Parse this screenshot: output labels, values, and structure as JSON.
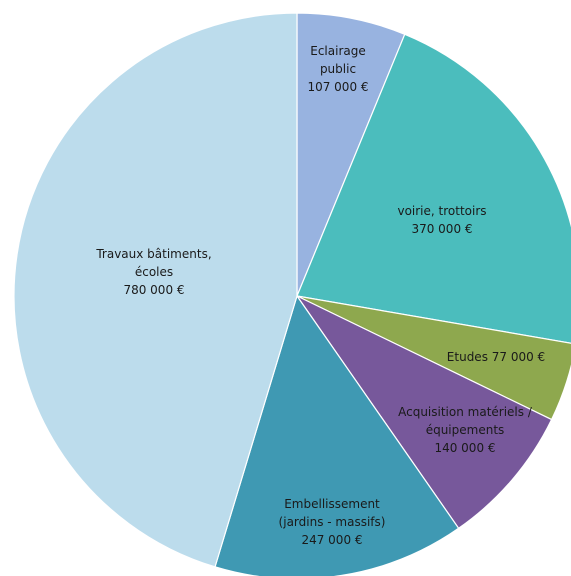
{
  "chart_data": {
    "type": "pie",
    "title": "",
    "slices": [
      {
        "label_lines": [
          "Eclairage",
          "public",
          "107 000 €"
        ],
        "value": 107000,
        "color": "#98b3e0"
      },
      {
        "label_lines": [
          "voirie, trottoirs",
          "370 000 €"
        ],
        "value": 370000,
        "color": "#4bbdbd"
      },
      {
        "label_lines": [
          "Etudes  77 000 €"
        ],
        "value": 77000,
        "color": "#8ea84e"
      },
      {
        "label_lines": [
          "Acquisition matériels /",
          "équipements",
          "140 000 €"
        ],
        "value": 140000,
        "color": "#77589b"
      },
      {
        "label_lines": [
          "Embellissement",
          "(jardins - massifs)",
          "247 000 €"
        ],
        "value": 247000,
        "color": "#3f99b3"
      },
      {
        "label_lines": [
          "Travaux bâtiments,",
          "écoles",
          "780 000 €"
        ],
        "value": 780000,
        "color": "#bcdcec"
      }
    ],
    "start": "12 o'clock",
    "direction": "clockwise",
    "legend": "none"
  }
}
